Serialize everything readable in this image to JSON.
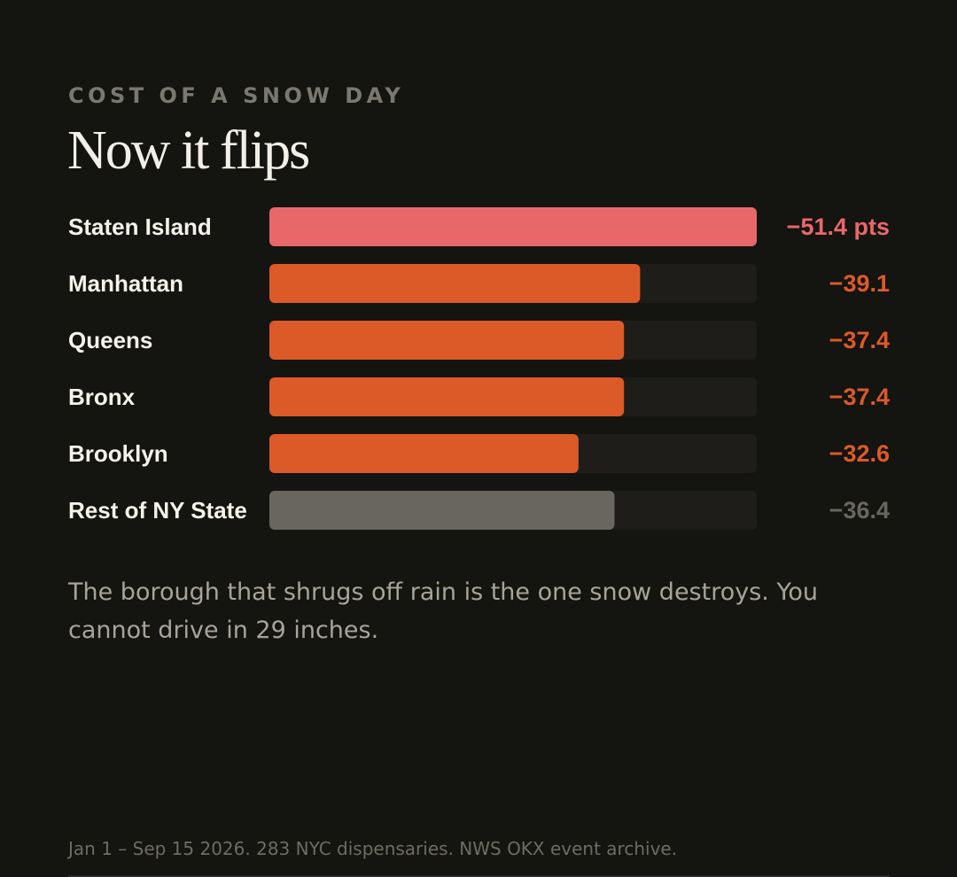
{
  "eyebrow": "COST OF A SNOW DAY",
  "title": "Now it flips",
  "chart_data": {
    "type": "bar",
    "orientation": "horizontal",
    "categories": [
      "Staten Island",
      "Manhattan",
      "Queens",
      "Bronx",
      "Brooklyn",
      "Rest of NY State"
    ],
    "values": [
      -51.4,
      -39.1,
      -37.4,
      -37.4,
      -32.6,
      -36.4
    ],
    "value_labels": [
      "−51.4 pts",
      "−39.1",
      "−37.4",
      "−37.4",
      "−32.6",
      "−36.4"
    ],
    "unit": "pts",
    "xlim": [
      0,
      -51.4
    ],
    "colors": [
      "#e8686a",
      "#dc5a28",
      "#dc5a28",
      "#dc5a28",
      "#dc5a28",
      "#68665f"
    ],
    "track_color": "#1e1d1a",
    "grid": false
  },
  "caption": "The borough that shrugs off rain is the one snow destroys. You cannot drive in 29 inches.",
  "footer": "Jan 1 – Sep 15 2026. 283 NYC dispensaries. NWS OKX event archive."
}
